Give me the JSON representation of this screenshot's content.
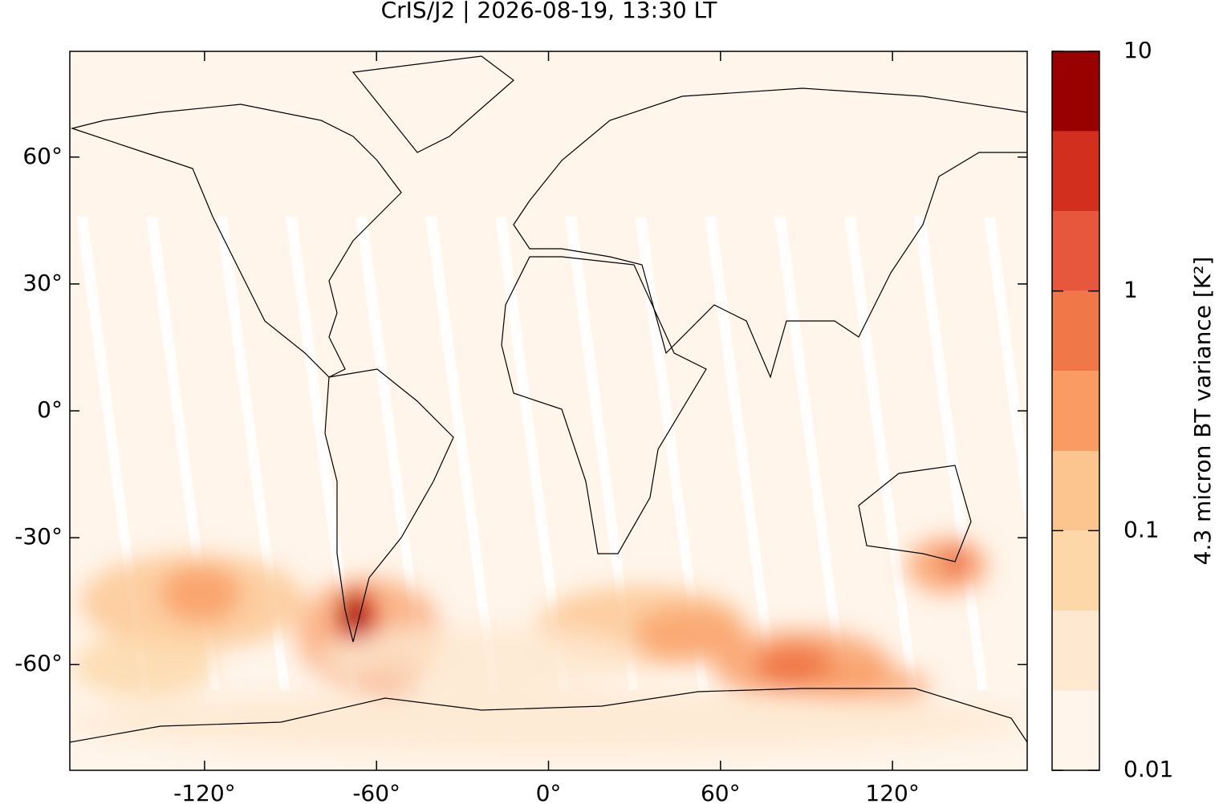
{
  "chart_data": {
    "type": "map",
    "title": "CrIS/J2 | 2026-08-19, 13:30 LT",
    "xlim": [
      -167,
      167
    ],
    "ylim": [
      -85,
      85
    ],
    "xticks": [
      {
        "value": -120,
        "label": "-120°"
      },
      {
        "value": -60,
        "label": "-60°"
      },
      {
        "value": 0,
        "label": "0°"
      },
      {
        "value": 60,
        "label": "60°"
      },
      {
        "value": 120,
        "label": "120°"
      }
    ],
    "yticks": [
      {
        "value": -60,
        "label": "-60°"
      },
      {
        "value": -30,
        "label": "-30°"
      },
      {
        "value": 0,
        "label": "0°"
      },
      {
        "value": 30,
        "label": "30°"
      },
      {
        "value": 60,
        "label": "60°"
      }
    ],
    "background": "#fff5eb",
    "colorbar": {
      "label": "4.3 micron BT variance [K²]",
      "scale": "log",
      "lim": [
        0.01,
        10
      ],
      "ticks": [
        0.01,
        0.1,
        1,
        10
      ],
      "levels": [
        0.01,
        0.0215,
        0.0464,
        0.1,
        0.215,
        0.464,
        1,
        2.15,
        4.64,
        10
      ],
      "colors": [
        "#fff5eb",
        "#fee8cf",
        "#fdd7a8",
        "#fcc48f",
        "#f99b63",
        "#f07848",
        "#e6573e",
        "#d32f1f",
        "#990000"
      ]
    }
  }
}
